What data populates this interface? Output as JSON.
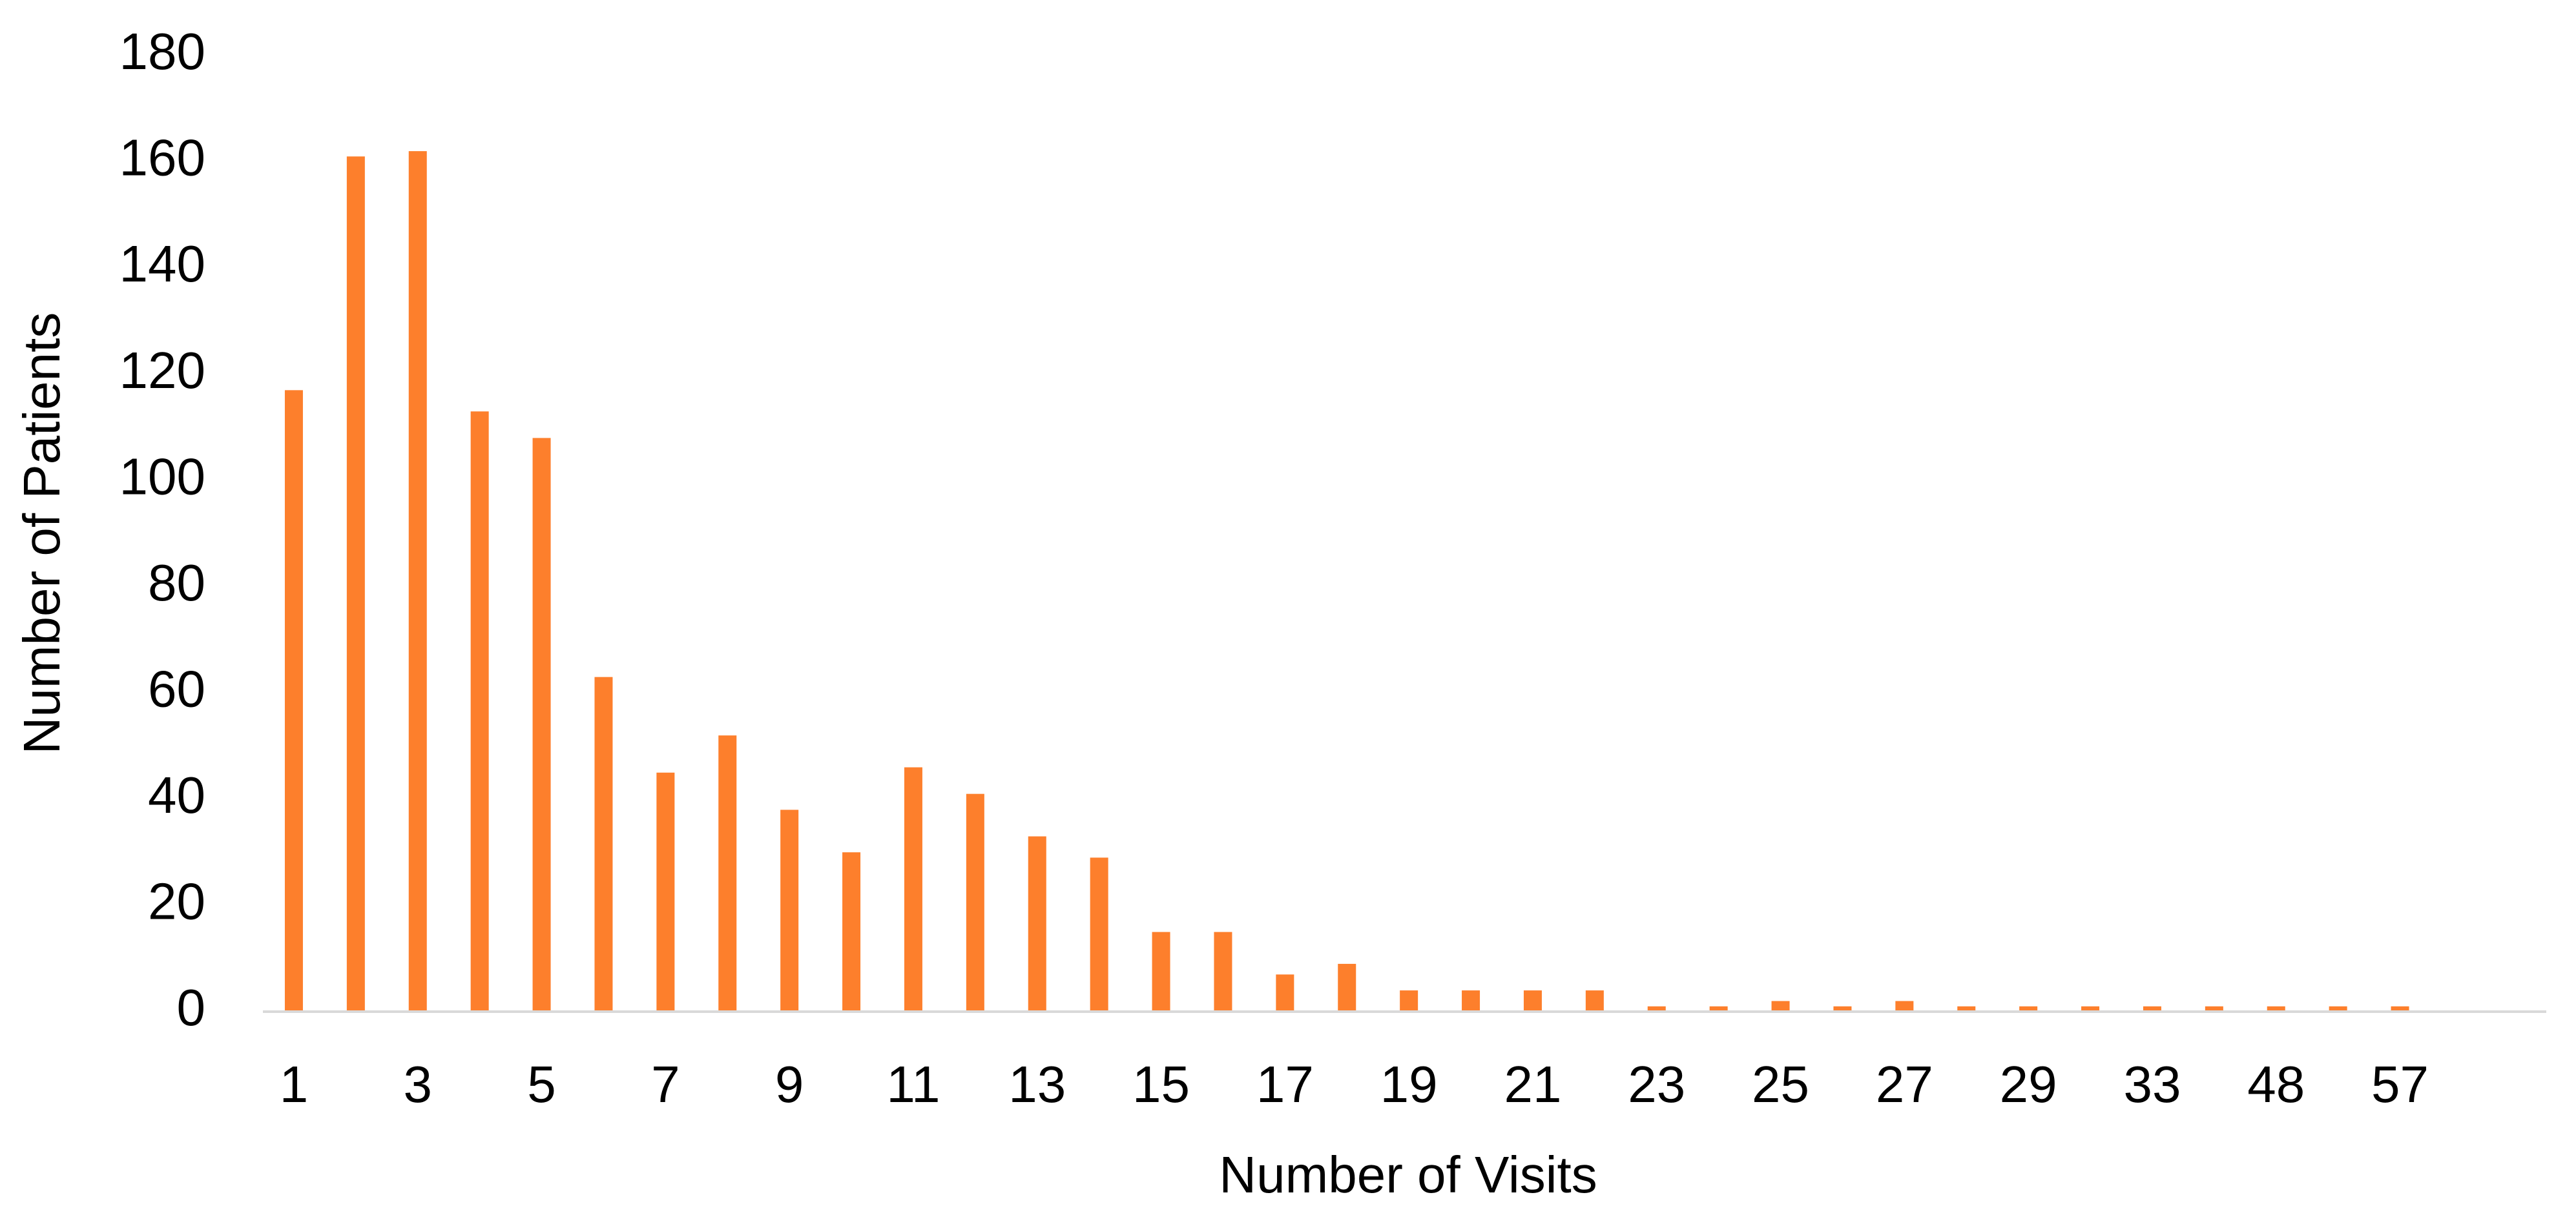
{
  "chart_data": {
    "type": "bar",
    "x_label": "Number of Visits",
    "y_label": "Number of Patients",
    "categories": [
      "1",
      null,
      "3",
      null,
      "5",
      null,
      "7",
      null,
      "9",
      null,
      "11",
      null,
      "13",
      null,
      "15",
      null,
      "17",
      null,
      "19",
      null,
      "21",
      null,
      "23",
      null,
      "25",
      null,
      "27",
      null,
      "29",
      null,
      "33",
      null,
      "48",
      null,
      "57"
    ],
    "values": [
      117,
      161,
      162,
      113,
      108,
      63,
      45,
      52,
      38,
      30,
      46,
      41,
      33,
      29,
      15,
      15,
      7,
      9,
      4,
      4,
      4,
      4,
      1,
      1,
      2,
      1,
      2,
      1,
      1,
      1,
      1,
      1,
      1,
      1,
      1
    ],
    "color": "#fd7f2c",
    "ylim": [
      0,
      180
    ],
    "yticks": [
      0,
      20,
      40,
      60,
      80,
      100,
      120,
      140,
      160,
      180
    ],
    "grid": false
  }
}
